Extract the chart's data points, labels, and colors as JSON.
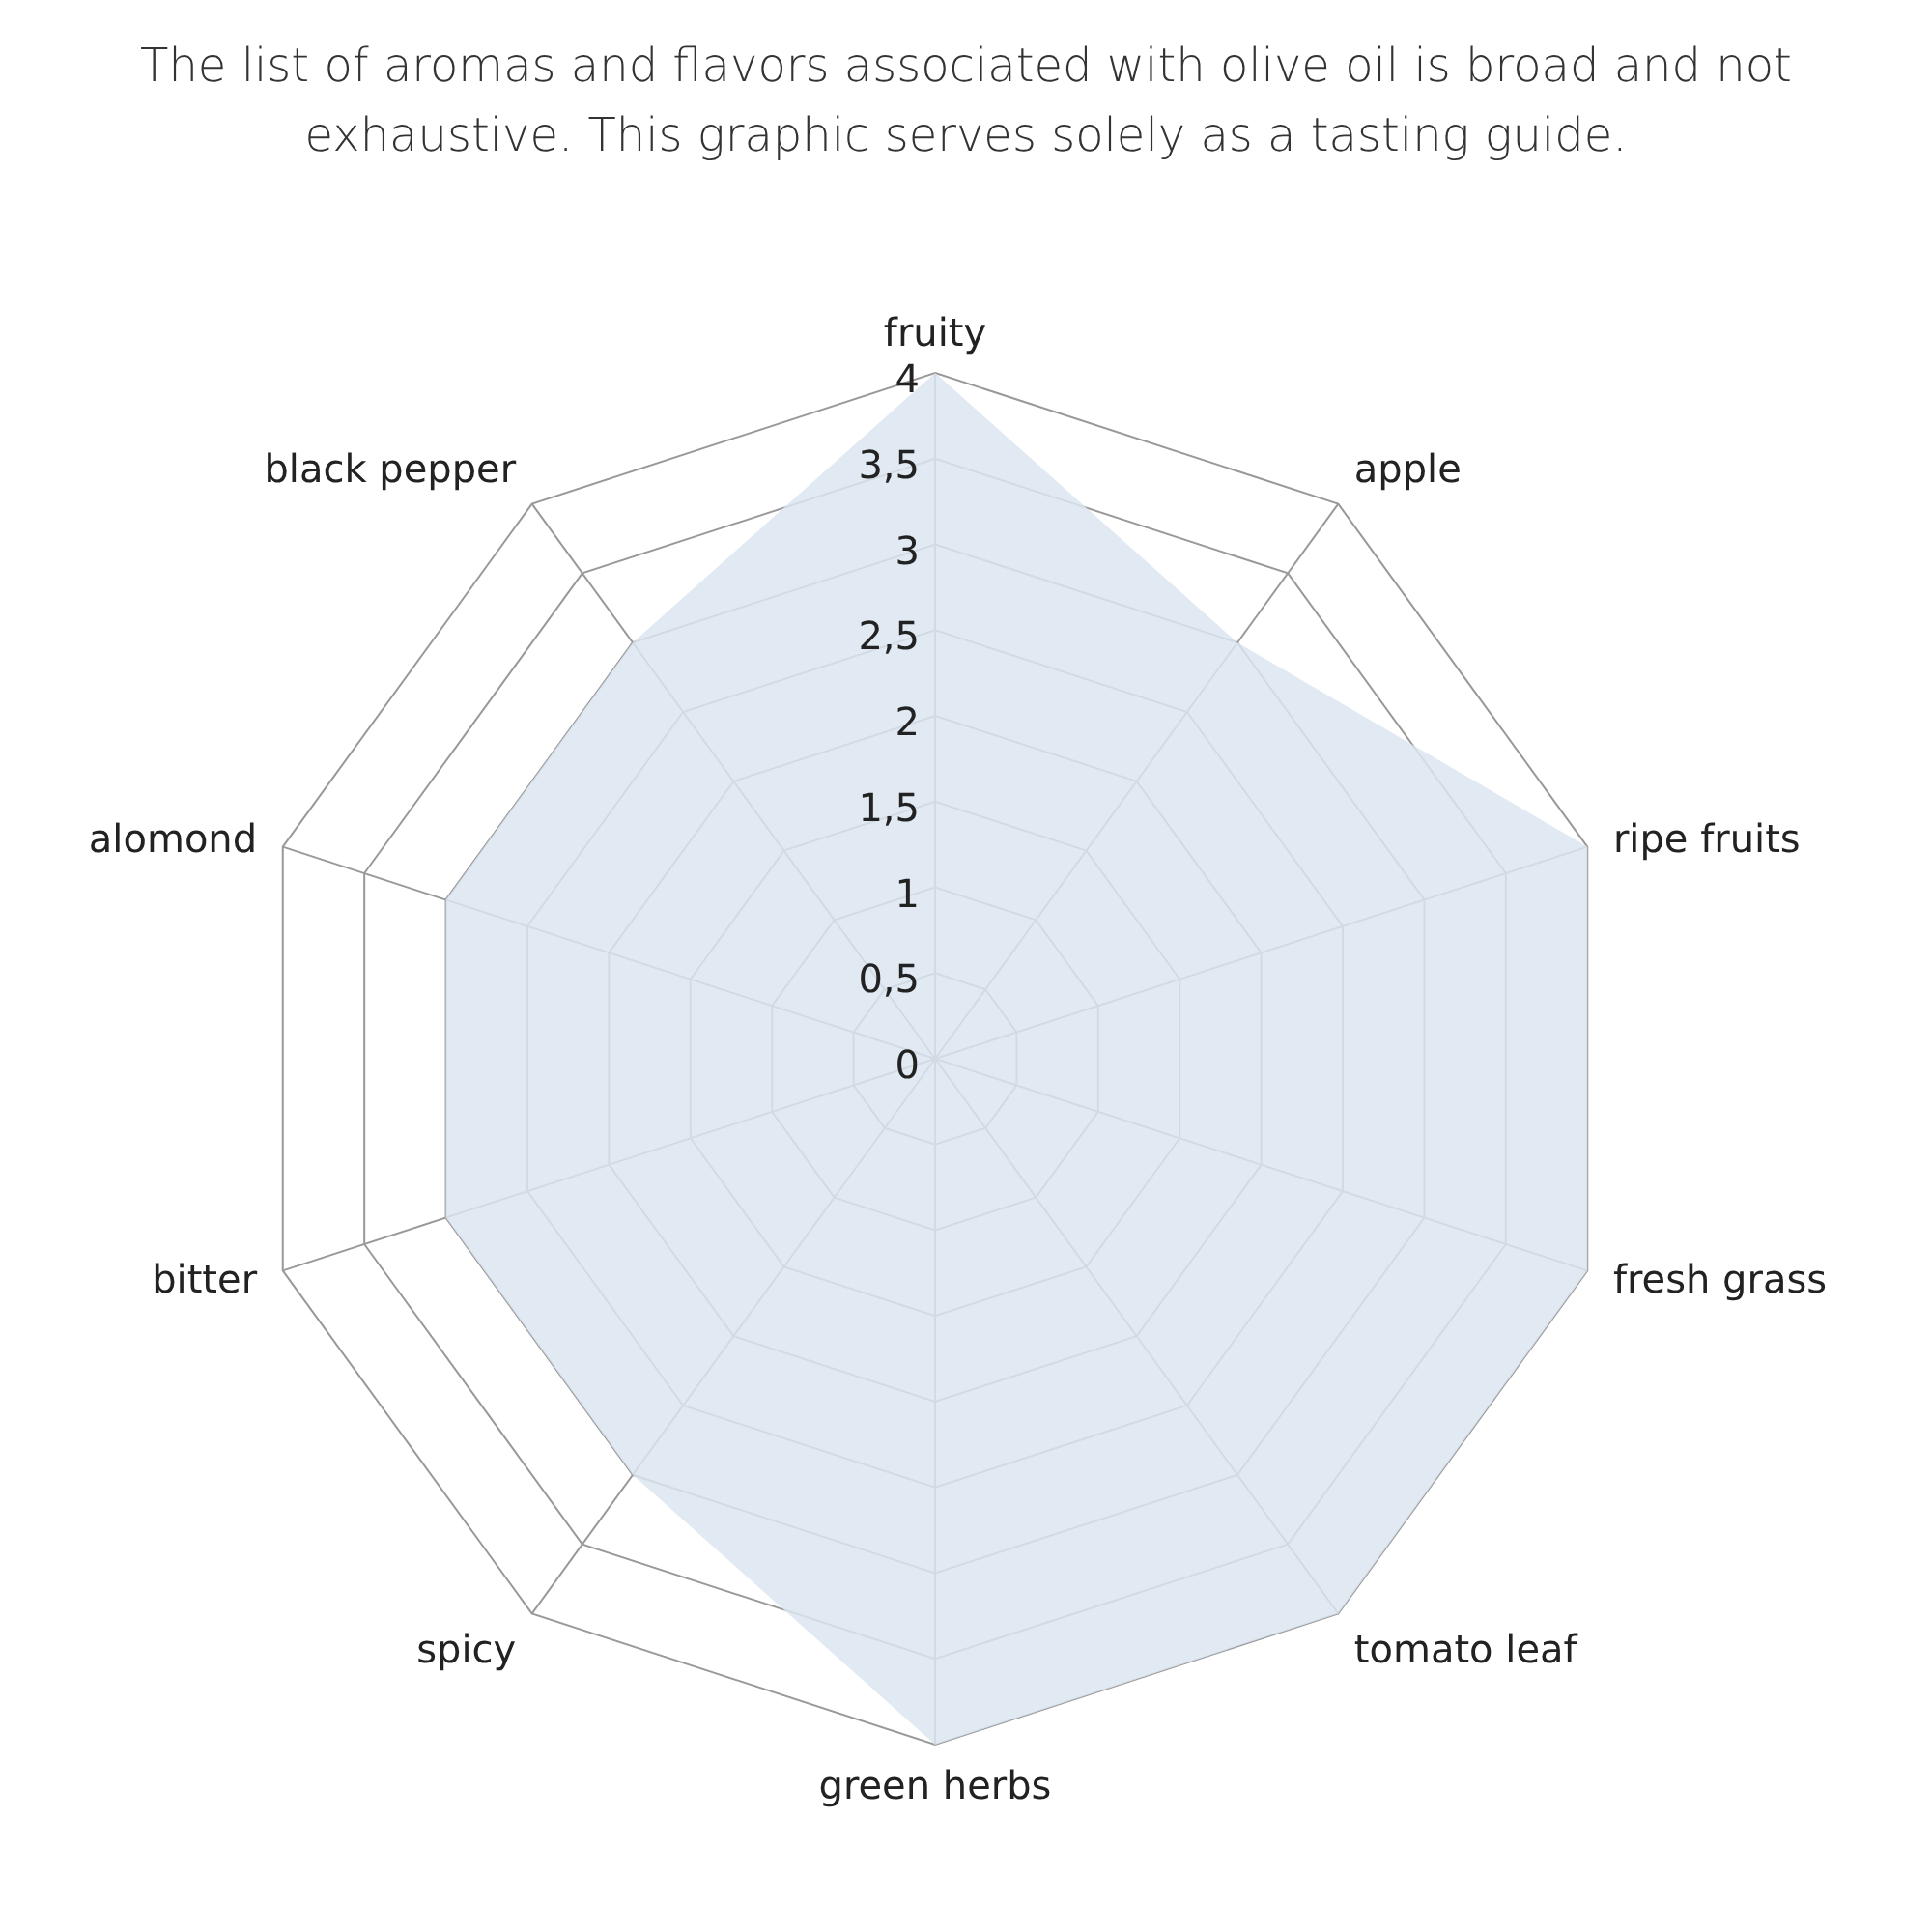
{
  "chart_data": {
    "type": "radar",
    "title": "The list of aromas and flavors associated with olive oil is broad and not exhaustive. This graphic serves solely as a tasting guide.",
    "categories": [
      "fruity",
      "apple",
      "ripe fruits",
      "fresh grass",
      "tomato leaf",
      "green herbs",
      "spicy",
      "bitter",
      "alomond",
      "black pepper"
    ],
    "series": [
      {
        "color": "#dce5f1",
        "values": [
          4,
          3,
          4,
          4,
          4,
          4,
          3,
          3,
          3,
          3
        ]
      }
    ],
    "ylim": [
      0,
      4
    ],
    "yticks": [
      0,
      {
        "value": 0.5,
        "label": "0,5"
      },
      1,
      {
        "value": 1.5,
        "label": "1,5"
      },
      2,
      {
        "value": 2.5,
        "label": "2,5"
      },
      3,
      {
        "value": 3.5,
        "label": "3,5"
      },
      4
    ],
    "grid": true
  }
}
